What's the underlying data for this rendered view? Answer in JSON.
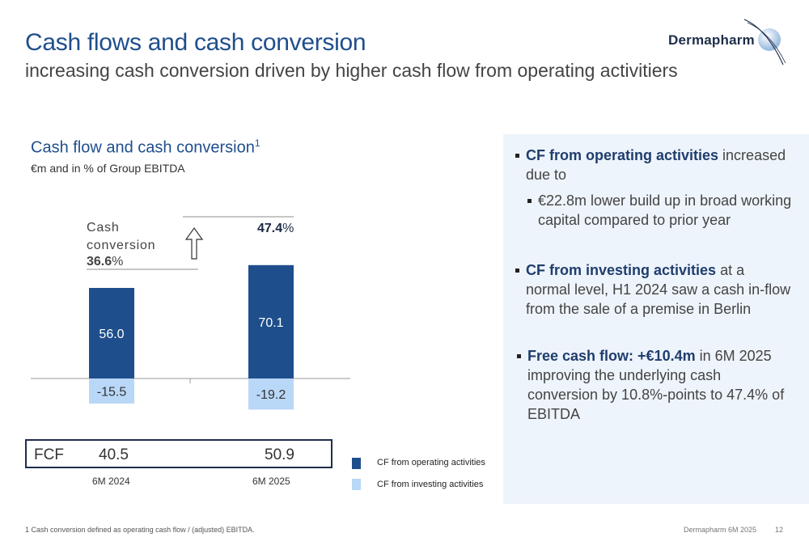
{
  "header": {
    "title": "Cash flows and cash conversion",
    "subtitle": "increasing cash conversion driven by higher cash flow from operating activitiers",
    "logo_text": "Dermapharm"
  },
  "chart": {
    "title": "Cash flow and cash conversion",
    "title_sup": "1",
    "subtitle": "€m and in % of Group EBITDA",
    "cash_conversion_label": "Cash conversion",
    "cash_conversion_2024_bold": "36.6",
    "cash_conversion_2025_bold": "47.4",
    "percent_sign": "%"
  },
  "chart_data": {
    "type": "bar",
    "categories": [
      "6M 2024",
      "6M 2025"
    ],
    "series": [
      {
        "name": "CF from operating activities",
        "values": [
          56.0,
          70.1
        ],
        "color": "#1f4e8c"
      },
      {
        "name": "CF from investing activities",
        "values": [
          -15.5,
          -19.2
        ],
        "color": "#b9d7f7"
      }
    ],
    "fcf": {
      "label": "FCF",
      "values": [
        "40.5",
        "50.9"
      ]
    },
    "cash_conversion": [
      "36.6%",
      "47.4%"
    ],
    "value_labels": {
      "operating": [
        "56.0",
        "70.1"
      ],
      "investing": [
        "-15.5",
        "-19.2"
      ]
    }
  },
  "legend": {
    "operating": "CF from operating activities",
    "investing": "CF from investing activities"
  },
  "right_panel": {
    "b1_bold": "CF from operating activities",
    "b1_rest": " increased due to",
    "b1_sub": "€22.8m lower build up in broad working capital compared to prior year",
    "b2_bold": "CF from investing activities",
    "b2_rest": " at a normal level, H1 2024 saw a cash in-flow from the sale of a premise in Berlin",
    "b3_bold": "Free cash flow: +€10.4m",
    "b3_rest": " in 6M 2025 improving the underlying cash conversion by 10.8%-points to 47.4% of EBITDA"
  },
  "footer": {
    "footnote": "1 Cash conversion defined as operating cash flow / (adjusted) EBITDA.",
    "right": "Dermapharm 6M 2025",
    "page": "12"
  }
}
